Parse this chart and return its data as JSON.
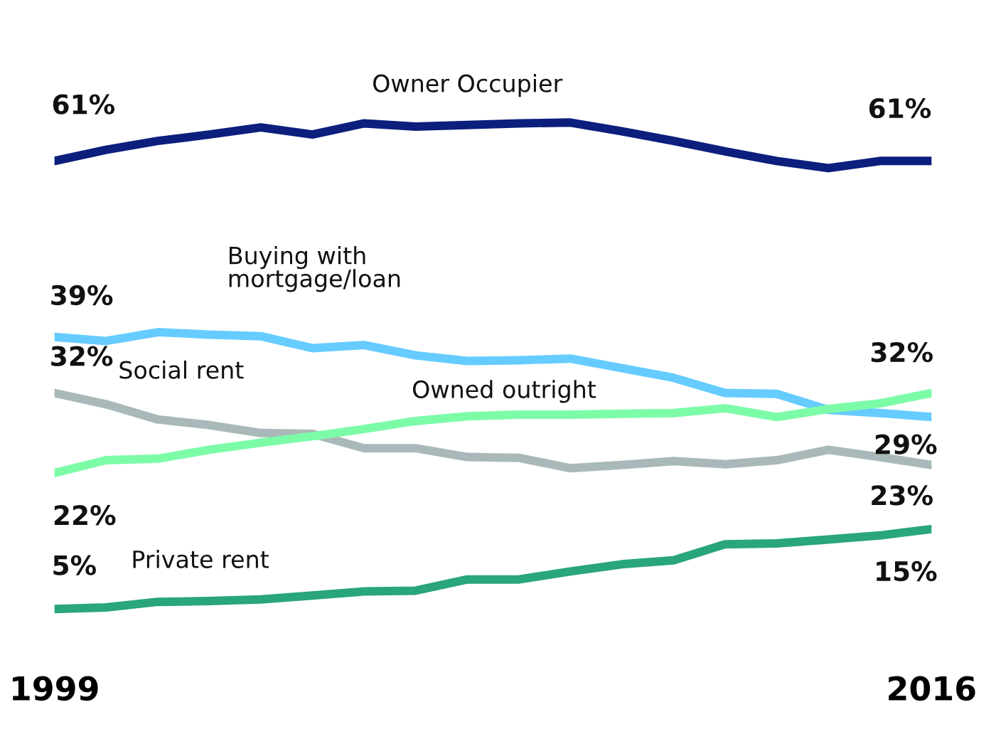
{
  "chart_data": {
    "type": "line",
    "x": [
      1999,
      2000,
      2001,
      2002,
      2003,
      2004,
      2005,
      2006,
      2007,
      2008,
      2009,
      2010,
      2011,
      2012,
      2013,
      2014,
      2015,
      2016
    ],
    "xlim": [
      1999,
      2016
    ],
    "xticks": [
      1999,
      2016
    ],
    "tick_labels": "x",
    "grid": false,
    "legend": false,
    "line_style": "solid",
    "series": [
      {
        "name": "Owner Occupier",
        "color": "#0c1f7c",
        "values": [
          61,
          62.4,
          63.5,
          64.3,
          65.2,
          64.3,
          65.7,
          65.3,
          65.5,
          65.7,
          65.8,
          64.7,
          63.5,
          62.2,
          61.0,
          60.1,
          61,
          61
        ],
        "value_labels": [
          "61%",
          null,
          null,
          null,
          null,
          null,
          null,
          null,
          null,
          null,
          null,
          null,
          null,
          null,
          null,
          null,
          null,
          "61%"
        ]
      },
      {
        "name": "Buying with\nmortgage/loan",
        "color": "#66ccff",
        "values": [
          39,
          38.5,
          39.6,
          39.3,
          39.1,
          37.6,
          38.0,
          36.7,
          36.0,
          36.1,
          36.3,
          35.1,
          33.9,
          32.0,
          31.9,
          29.9,
          29.5,
          29
        ],
        "value_labels": [
          "39%",
          null,
          null,
          null,
          null,
          null,
          null,
          null,
          null,
          null,
          null,
          null,
          null,
          null,
          null,
          null,
          null,
          "29%"
        ]
      },
      {
        "name": "Social rent",
        "color": "#a9b9b9",
        "values": [
          32,
          30.6,
          28.7,
          28.0,
          27.0,
          26.9,
          25.1,
          25.1,
          24.0,
          23.9,
          22.6,
          23.0,
          23.5,
          23.1,
          23.6,
          24.9,
          24.0,
          23
        ],
        "value_labels": [
          "32%",
          null,
          null,
          null,
          null,
          null,
          null,
          null,
          null,
          null,
          null,
          null,
          null,
          null,
          null,
          null,
          null,
          "23%"
        ]
      },
      {
        "name": "Owned outright",
        "color": "#7dfca8",
        "values": [
          22,
          23.6,
          23.8,
          24.9,
          25.8,
          26.6,
          27.5,
          28.5,
          29.1,
          29.3,
          29.3,
          29.4,
          29.5,
          30.1,
          29.0,
          30.0,
          30.7,
          32
        ],
        "value_labels": [
          "22%",
          null,
          null,
          null,
          null,
          null,
          null,
          null,
          null,
          null,
          null,
          null,
          null,
          null,
          null,
          null,
          null,
          "32%"
        ]
      },
      {
        "name": "Private rent",
        "color": "#29a67a",
        "values": [
          5,
          5.2,
          5.9,
          6.0,
          6.2,
          6.7,
          7.2,
          7.3,
          8.7,
          8.7,
          9.7,
          10.6,
          11.1,
          13.1,
          13.2,
          13.7,
          14.2,
          15
        ],
        "value_labels": [
          "5%",
          null,
          null,
          null,
          null,
          null,
          null,
          null,
          null,
          null,
          null,
          null,
          null,
          null,
          null,
          null,
          null,
          "15%"
        ]
      }
    ]
  }
}
